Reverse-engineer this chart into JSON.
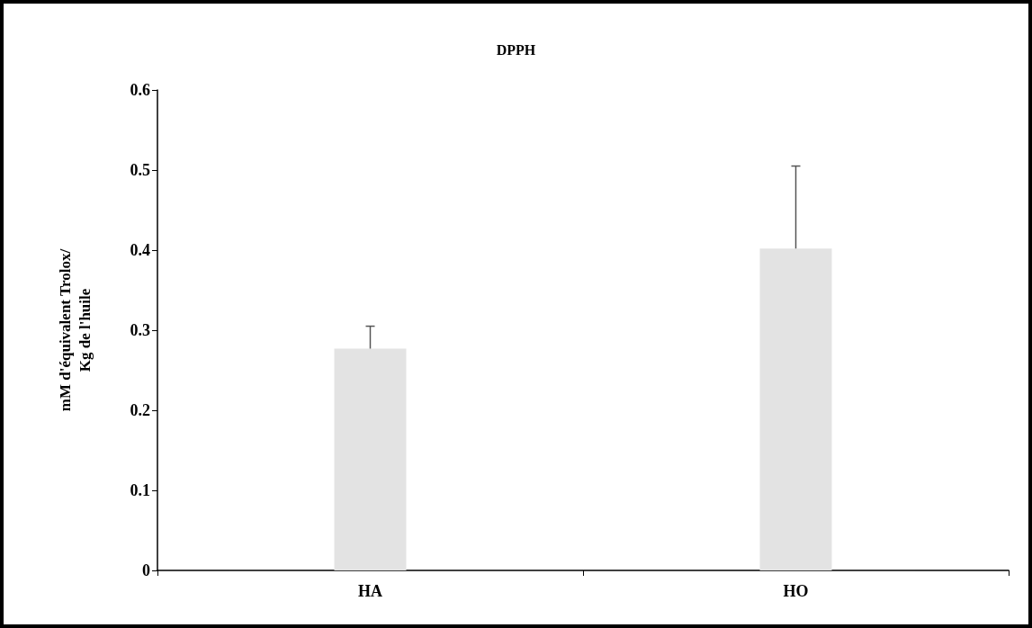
{
  "chart_data": {
    "type": "bar",
    "title": "DPPH",
    "ylabel": "mM d'équivalent Trolox/\nKg de l'huile",
    "categories": [
      "HA",
      "HO"
    ],
    "values": [
      0.277,
      0.402
    ],
    "errors": [
      [
        0.277,
        0.305
      ],
      [
        0.402,
        0.505
      ]
    ],
    "color": "#e3e3e3",
    "ylim": [
      0,
      0.6
    ],
    "yticks": [
      0,
      0.1,
      0.2,
      0.3,
      0.4,
      0.5,
      0.6
    ],
    "grid": false
  }
}
